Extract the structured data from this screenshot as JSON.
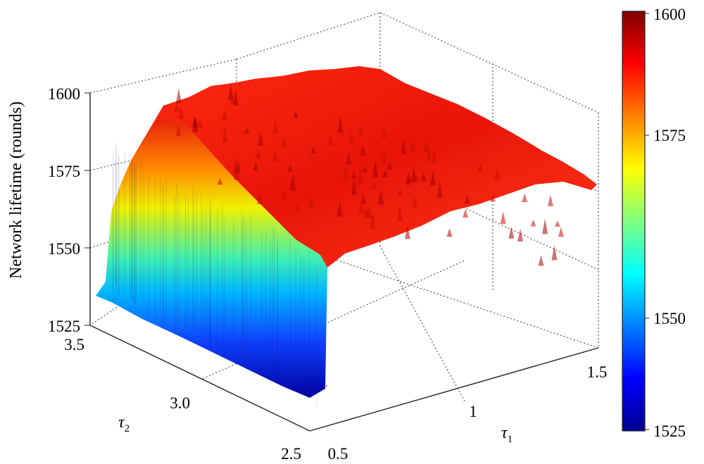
{
  "chart_data": {
    "type": "surface3d",
    "title": "",
    "xlabel": "τ",
    "xlabel_sub": "1",
    "ylabel": "τ",
    "ylabel_sub": "2",
    "zlabel": "Network lifetime (rounds)",
    "x_ticks": [
      "0.5",
      "1",
      "1.5"
    ],
    "y_ticks": [
      "2.5",
      "3.0",
      "3.5"
    ],
    "z_ticks": [
      "1525",
      "1550",
      "1575",
      "1600"
    ],
    "xlim": [
      0.5,
      1.5
    ],
    "ylim": [
      2.5,
      3.5
    ],
    "zlim": [
      1525,
      1600
    ],
    "colorbar": {
      "min": 1525,
      "max": 1600,
      "ticks": [
        "1525",
        "1550",
        "1575",
        "1600"
      ],
      "colormap": "jet"
    },
    "grid": true,
    "surface_note": "Surface rises steeply from ~1530 at τ1=0.5 to a noisy plateau near 1585–1595 for τ1 ≥ ~0.6; plateau slightly lower toward τ1=1.5",
    "profile": {
      "x": [
        0.5,
        0.55,
        0.6,
        0.7,
        0.8,
        0.9,
        1.0,
        1.1,
        1.2,
        1.3,
        1.4,
        1.5
      ],
      "z": [
        1531,
        1560,
        1584,
        1590,
        1592,
        1593,
        1592,
        1591,
        1590,
        1588,
        1586,
        1584
      ]
    }
  }
}
